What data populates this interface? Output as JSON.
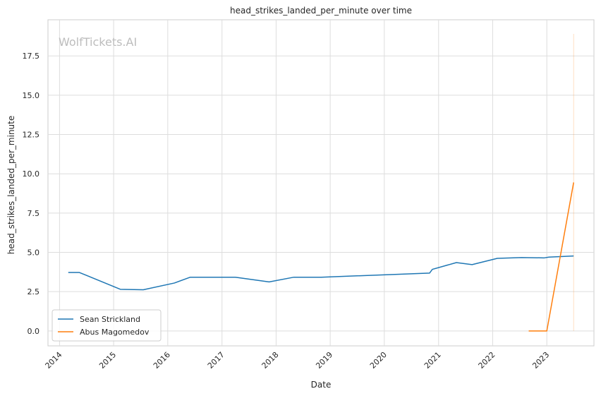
{
  "chart_data": {
    "type": "line",
    "title": "head_strikes_landed_per_minute over time",
    "xlabel": "Date",
    "ylabel": "head_strikes_landed_per_minute",
    "watermark": "WolfTickets.AI",
    "x_type": "date",
    "xlim": [
      "2013-10-15",
      "2023-11-15"
    ],
    "ylim": [
      -0.95,
      19.8
    ],
    "x_ticks": [
      "2014",
      "2015",
      "2016",
      "2017",
      "2018",
      "2019",
      "2020",
      "2021",
      "2022",
      "2023"
    ],
    "y_ticks": [
      0.0,
      2.5,
      5.0,
      7.5,
      10.0,
      12.5,
      15.0,
      17.5
    ],
    "y_tick_labels": [
      "0.0",
      "2.5",
      "5.0",
      "7.5",
      "10.0",
      "12.5",
      "15.0",
      "17.5"
    ],
    "grid": true,
    "legend_position": "lower-left",
    "series": [
      {
        "name": "Sean Strickland",
        "color": "#1f77b4",
        "points": [
          [
            "2014-03-01",
            3.72
          ],
          [
            "2014-05-15",
            3.72
          ],
          [
            "2015-02-15",
            2.65
          ],
          [
            "2015-07-20",
            2.62
          ],
          [
            "2016-02-15",
            3.05
          ],
          [
            "2016-06-01",
            3.42
          ],
          [
            "2017-04-01",
            3.42
          ],
          [
            "2017-11-15",
            3.12
          ],
          [
            "2018-05-01",
            3.42
          ],
          [
            "2018-11-01",
            3.42
          ],
          [
            "2020-11-01",
            3.68
          ],
          [
            "2020-11-20",
            3.92
          ],
          [
            "2021-05-01",
            4.35
          ],
          [
            "2021-08-15",
            4.22
          ],
          [
            "2022-02-01",
            4.62
          ],
          [
            "2022-07-15",
            4.67
          ],
          [
            "2022-12-15",
            4.65
          ],
          [
            "2023-01-15",
            4.7
          ],
          [
            "2023-07-01",
            4.77
          ]
        ]
      },
      {
        "name": "Abus Magomedov",
        "color": "#ff7f0e",
        "points": [
          [
            "2022-09-01",
            0.0
          ],
          [
            "2023-01-01",
            0.0
          ],
          [
            "2023-07-01",
            9.45
          ]
        ]
      }
    ],
    "vertical_marker": {
      "x": "2023-07-01",
      "y_range": [
        0.0,
        18.9
      ],
      "color": "#ff7f0e"
    }
  }
}
